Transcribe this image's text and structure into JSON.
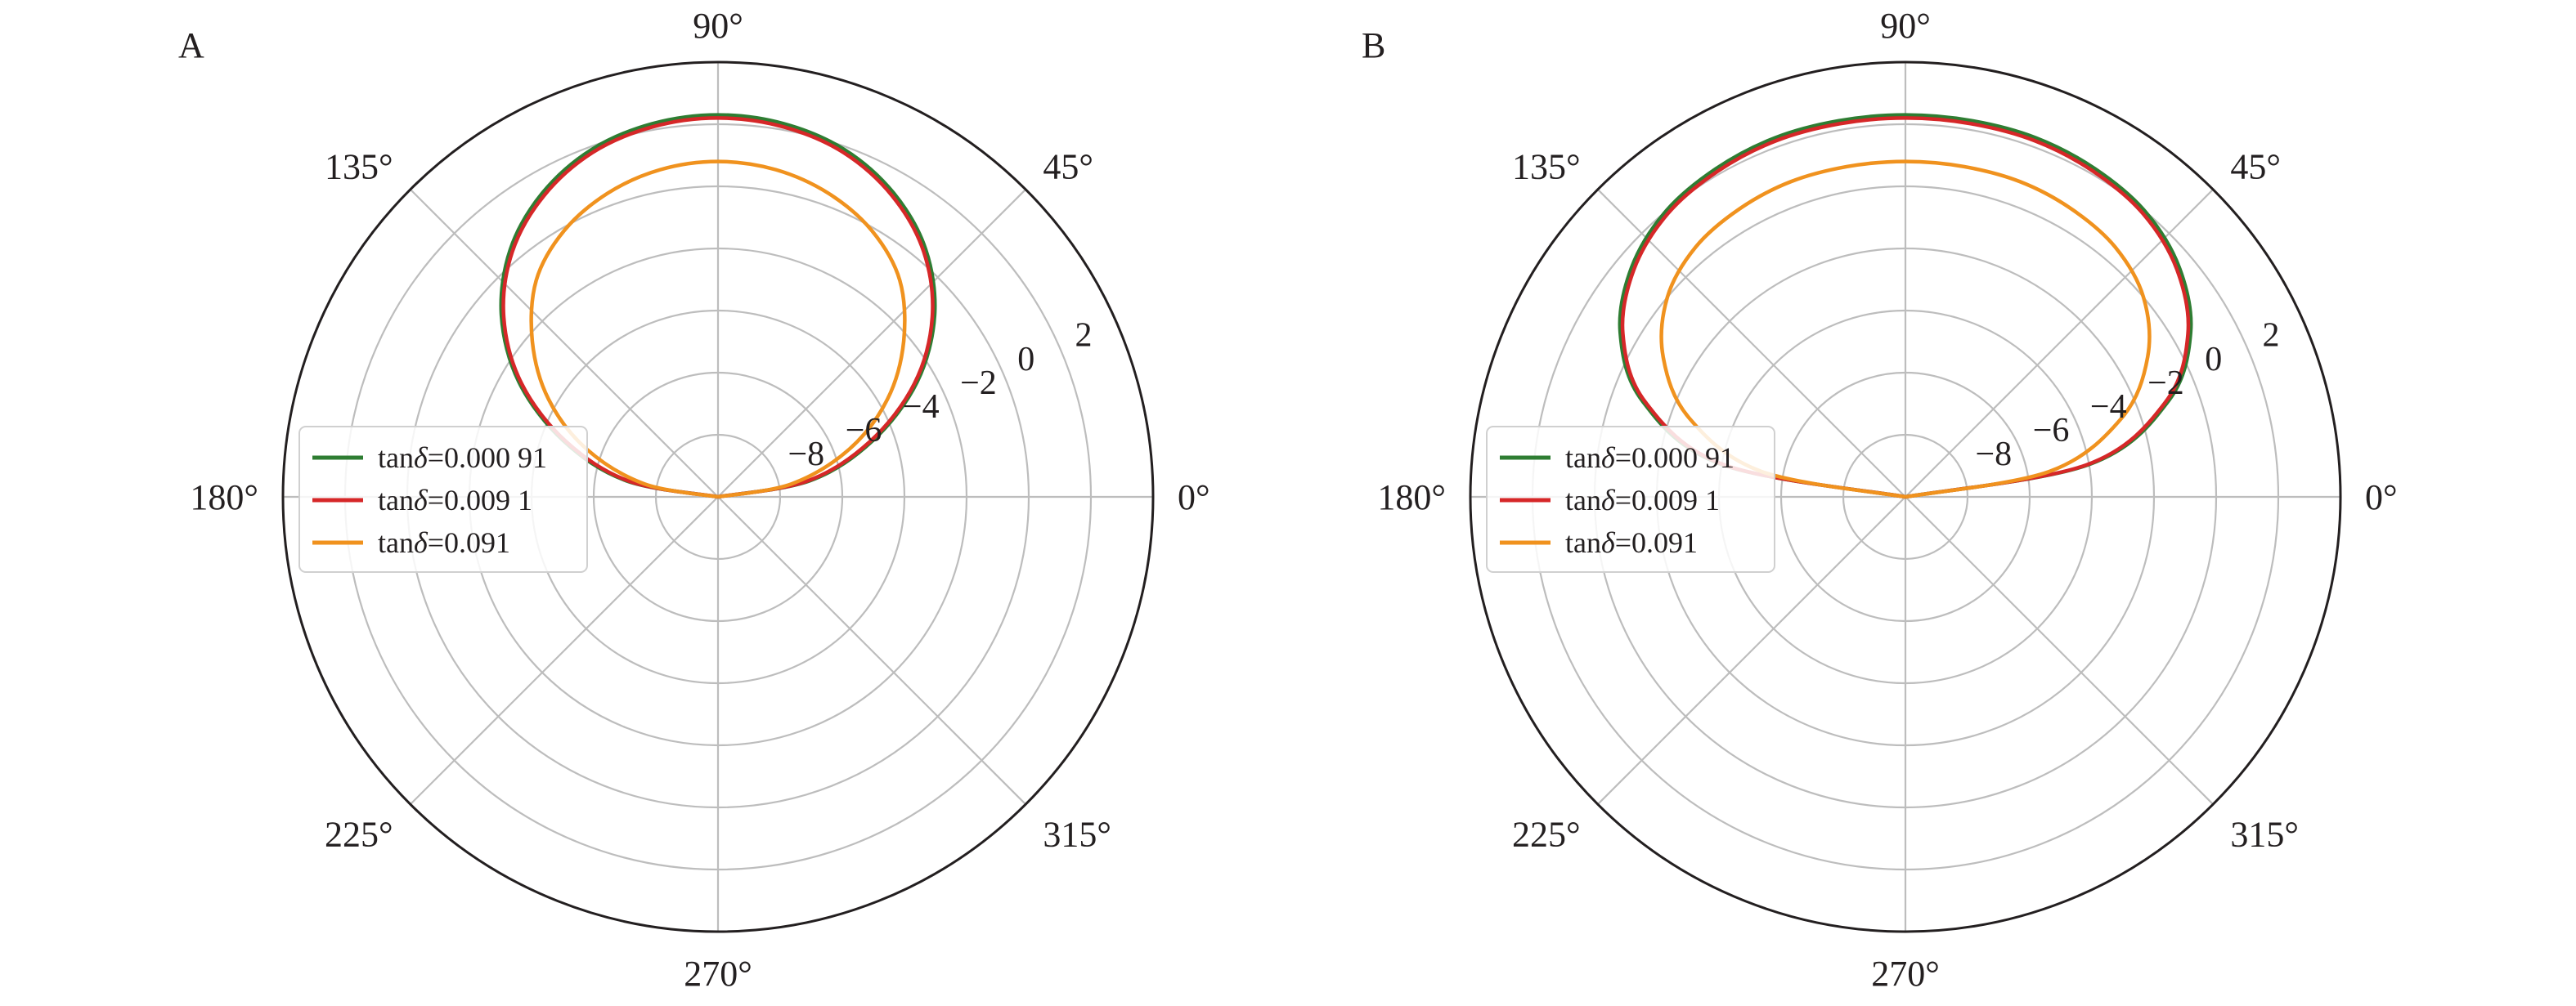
{
  "chart_data": [
    {
      "type": "polar-line",
      "panel_label": "A",
      "theta_tick_labels": [
        "0°",
        "45°",
        "90°",
        "135°",
        "180°",
        "225°",
        "270°",
        "315°"
      ],
      "radial_ticks": [
        -8,
        -6,
        -4,
        -2,
        0,
        2
      ],
      "radial_tick_labels": [
        "−8",
        "−6",
        "−4",
        "−2",
        "0",
        "2"
      ],
      "rlim": [
        -10,
        4
      ],
      "grid": true,
      "legend_position": "left",
      "theta_deg": [
        0,
        10,
        20,
        30,
        40,
        50,
        60,
        70,
        80,
        90,
        100,
        110,
        120,
        130,
        140,
        150,
        160,
        170,
        180
      ],
      "series": [
        {
          "name_prefix": "tan",
          "name_symbol": "δ",
          "name_suffix": "=0.000 91",
          "color": "#2e7d32",
          "values": [
            -10,
            -7.0,
            -4.7,
            -2.6,
            -0.9,
            0.4,
            1.3,
            1.9,
            2.2,
            2.3,
            2.2,
            1.9,
            1.3,
            0.4,
            -0.9,
            -2.6,
            -4.7,
            -7.0,
            -10
          ]
        },
        {
          "name_prefix": "tan",
          "name_symbol": "δ",
          "name_suffix": "=0.009 1",
          "color": "#d62728",
          "values": [
            -10,
            -7.1,
            -4.8,
            -2.7,
            -1.0,
            0.3,
            1.2,
            1.8,
            2.1,
            2.2,
            2.1,
            1.8,
            1.2,
            0.3,
            -1.0,
            -2.7,
            -4.8,
            -7.1,
            -10
          ]
        },
        {
          "name_prefix": "tan",
          "name_symbol": "δ",
          "name_suffix": "=0.091",
          "color": "#f0921e",
          "values": [
            -10,
            -7.6,
            -5.5,
            -3.7,
            -2.2,
            -0.9,
            -0.1,
            0.4,
            0.7,
            0.8,
            0.7,
            0.4,
            -0.1,
            -0.9,
            -2.2,
            -3.7,
            -5.5,
            -7.6,
            -10
          ]
        }
      ]
    },
    {
      "type": "polar-line",
      "panel_label": "B",
      "theta_tick_labels": [
        "0°",
        "45°",
        "90°",
        "135°",
        "180°",
        "225°",
        "270°",
        "315°"
      ],
      "radial_ticks": [
        -8,
        -6,
        -4,
        -2,
        0,
        2
      ],
      "radial_tick_labels": [
        "−8",
        "−6",
        "−4",
        "−2",
        "0",
        "2"
      ],
      "rlim": [
        -10,
        4
      ],
      "grid": true,
      "legend_position": "left",
      "theta_deg": [
        0,
        10,
        20,
        30,
        40,
        50,
        60,
        70,
        80,
        90,
        100,
        110,
        120,
        130,
        140,
        150,
        160,
        170,
        180
      ],
      "series": [
        {
          "name_prefix": "tan",
          "name_symbol": "δ",
          "name_suffix": "=0.000 91",
          "color": "#2e7d32",
          "values": [
            -10,
            -4.0,
            -1.0,
            0.6,
            1.5,
            2.0,
            2.2,
            2.3,
            2.3,
            2.3,
            2.3,
            2.3,
            2.2,
            2.0,
            1.5,
            0.6,
            -1.0,
            -4.0,
            -10
          ]
        },
        {
          "name_prefix": "tan",
          "name_symbol": "δ",
          "name_suffix": "=0.009 1",
          "color": "#d62728",
          "values": [
            -10,
            -4.1,
            -1.1,
            0.5,
            1.4,
            1.9,
            2.1,
            2.2,
            2.2,
            2.2,
            2.2,
            2.2,
            2.1,
            1.9,
            1.4,
            0.5,
            -1.1,
            -4.1,
            -10
          ]
        },
        {
          "name_prefix": "tan",
          "name_symbol": "δ",
          "name_suffix": "=0.091",
          "color": "#f0921e",
          "values": [
            -10,
            -5.3,
            -2.6,
            -1.0,
            0.0,
            0.5,
            0.7,
            0.8,
            0.8,
            0.8,
            0.8,
            0.8,
            0.7,
            0.5,
            0.0,
            -1.0,
            -2.6,
            -5.3,
            -10
          ]
        }
      ]
    }
  ]
}
